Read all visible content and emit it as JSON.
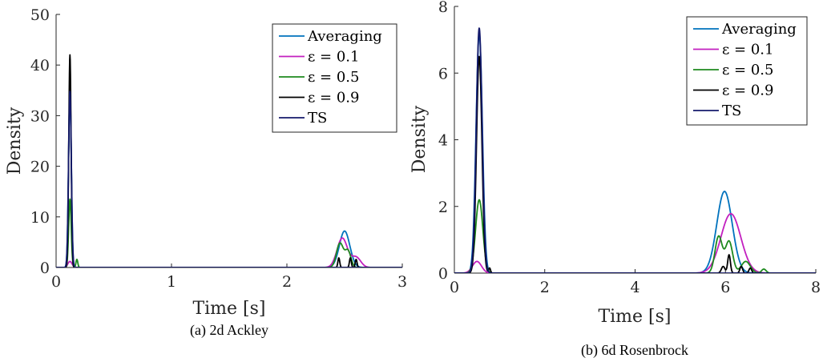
{
  "colors": {
    "averaging": "#0072BD",
    "eps01": "#C21FBF",
    "eps05": "#1E8A1E",
    "eps09": "#000000",
    "ts": "#14196B"
  },
  "legend_items": [
    {
      "key": "averaging",
      "label": "Averaging"
    },
    {
      "key": "eps01",
      "label": "ε = 0.1"
    },
    {
      "key": "eps05",
      "label": "ε = 0.5"
    },
    {
      "key": "eps09",
      "label": "ε = 0.9"
    },
    {
      "key": "ts",
      "label": "TS"
    }
  ],
  "chart_data": [
    {
      "type": "line",
      "caption": "(a) 2d Ackley",
      "xlabel": "Time [s]",
      "ylabel": "Density",
      "xlim": [
        0,
        3
      ],
      "ylim": [
        0,
        50
      ],
      "xticks": [
        0,
        1,
        2,
        3
      ],
      "yticks": [
        0,
        10,
        20,
        30,
        40,
        50
      ],
      "grid": false,
      "legend_position": "top-right",
      "series": [
        {
          "key": "averaging",
          "name": "Averaging",
          "peaks": [
            {
              "c": 0.12,
              "h": 34.5,
              "w": 0.012
            },
            {
              "c": 2.5,
              "h": 7.2,
              "w": 0.045
            }
          ]
        },
        {
          "key": "eps01",
          "name": "ε = 0.1",
          "peaks": [
            {
              "c": 0.12,
              "h": 1.2,
              "w": 0.018
            },
            {
              "c": 2.48,
              "h": 5.8,
              "w": 0.045
            },
            {
              "c": 2.6,
              "h": 2.0,
              "w": 0.04
            }
          ]
        },
        {
          "key": "eps05",
          "name": "ε = 0.5",
          "peaks": [
            {
              "c": 0.12,
              "h": 13.5,
              "w": 0.011
            },
            {
              "c": 0.18,
              "h": 1.6,
              "w": 0.008
            },
            {
              "c": 2.46,
              "h": 4.8,
              "w": 0.03
            },
            {
              "c": 2.53,
              "h": 3.2,
              "w": 0.025
            }
          ]
        },
        {
          "key": "eps09",
          "name": "ε = 0.9",
          "peaks": [
            {
              "c": 0.12,
              "h": 42.0,
              "w": 0.01
            },
            {
              "c": 2.45,
              "h": 1.9,
              "w": 0.008
            },
            {
              "c": 2.55,
              "h": 1.9,
              "w": 0.008
            },
            {
              "c": 2.6,
              "h": 1.6,
              "w": 0.008
            }
          ]
        },
        {
          "key": "ts",
          "name": "TS",
          "peaks": [
            {
              "c": 0.12,
              "h": 34.8,
              "w": 0.012
            }
          ]
        }
      ]
    },
    {
      "type": "line",
      "caption": "(b) 6d Rosenbrock",
      "xlabel": "Time [s]",
      "ylabel": "Density",
      "xlim": [
        0,
        8
      ],
      "ylim": [
        0,
        8
      ],
      "xticks": [
        0,
        2,
        4,
        6,
        8
      ],
      "yticks": [
        0,
        2,
        4,
        6,
        8
      ],
      "grid": false,
      "legend_position": "top-right",
      "series": [
        {
          "key": "averaging",
          "name": "Averaging",
          "peaks": [
            {
              "c": 0.55,
              "h": 7.2,
              "w": 0.07
            },
            {
              "c": 5.98,
              "h": 2.45,
              "w": 0.17
            }
          ]
        },
        {
          "key": "eps01",
          "name": "ε = 0.1",
          "peaks": [
            {
              "c": 0.5,
              "h": 0.35,
              "w": 0.1
            },
            {
              "c": 6.12,
              "h": 1.78,
              "w": 0.22
            }
          ]
        },
        {
          "key": "eps05",
          "name": "ε = 0.5",
          "peaks": [
            {
              "c": 0.55,
              "h": 2.2,
              "w": 0.08
            },
            {
              "c": 5.85,
              "h": 1.1,
              "w": 0.08
            },
            {
              "c": 6.08,
              "h": 0.95,
              "w": 0.08
            },
            {
              "c": 6.45,
              "h": 0.35,
              "w": 0.1
            },
            {
              "c": 6.85,
              "h": 0.12,
              "w": 0.05
            }
          ]
        },
        {
          "key": "eps09",
          "name": "ε = 0.9",
          "peaks": [
            {
              "c": 0.55,
              "h": 6.5,
              "w": 0.06
            },
            {
              "c": 0.78,
              "h": 0.15,
              "w": 0.02
            },
            {
              "c": 5.95,
              "h": 0.2,
              "w": 0.04
            },
            {
              "c": 6.08,
              "h": 0.55,
              "w": 0.03
            },
            {
              "c": 6.35,
              "h": 0.2,
              "w": 0.03
            },
            {
              "c": 6.55,
              "h": 0.15,
              "w": 0.03
            }
          ]
        },
        {
          "key": "ts",
          "name": "TS",
          "peaks": [
            {
              "c": 0.55,
              "h": 7.35,
              "w": 0.065
            }
          ]
        }
      ]
    }
  ]
}
